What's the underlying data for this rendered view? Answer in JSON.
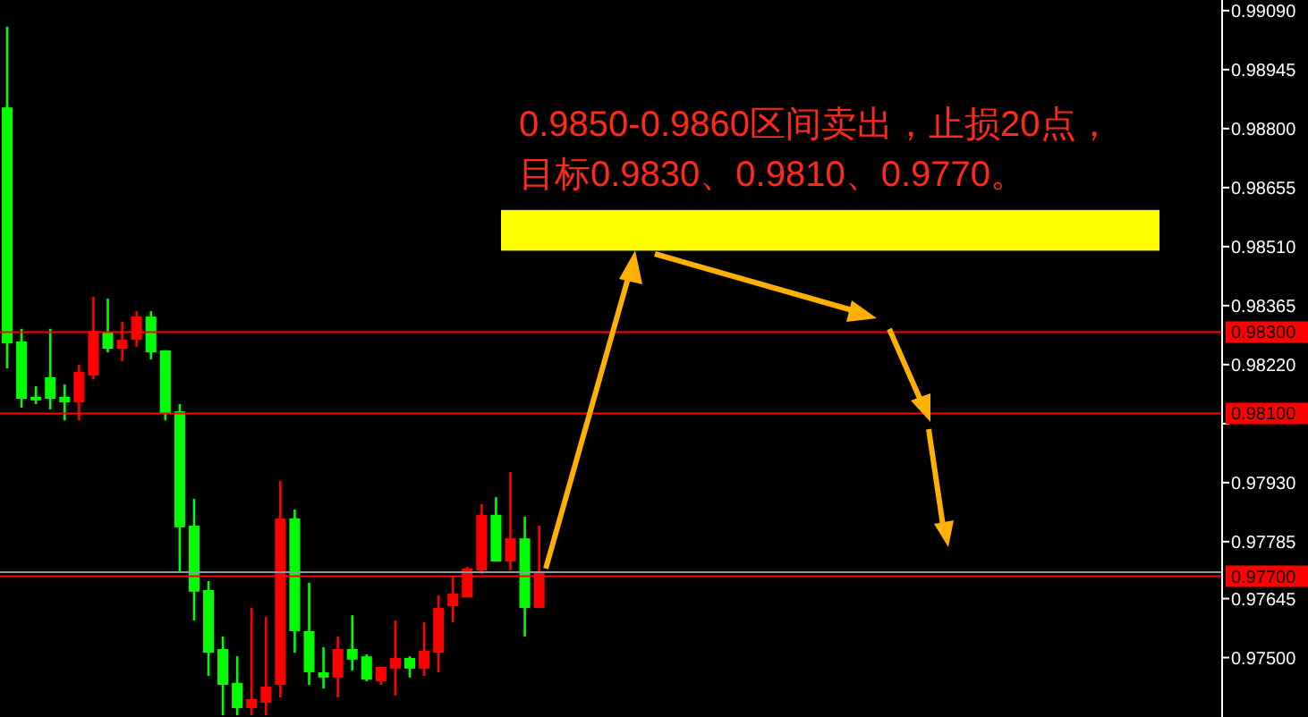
{
  "chart_data": {
    "type": "candlestick",
    "categories": [
      null,
      null,
      null,
      null,
      null,
      null,
      null,
      null,
      null,
      null,
      null,
      null,
      null,
      null,
      null,
      null,
      null,
      null,
      null,
      null,
      null,
      null,
      null,
      null,
      null,
      null,
      null,
      null,
      null,
      null,
      null,
      null,
      null,
      null,
      null,
      null,
      null,
      null,
      null,
      null,
      null,
      null,
      null,
      null,
      null,
      null,
      null,
      null,
      null,
      null,
      null,
      null,
      null,
      null,
      null,
      null,
      null,
      null,
      null,
      null,
      null,
      null,
      null,
      null,
      null,
      null,
      null,
      null,
      null,
      null,
      null,
      null,
      null,
      null,
      null,
      null,
      null,
      null,
      null,
      null,
      null,
      null,
      null,
      null,
      null
    ],
    "ohlc": [
      [
        0.98852,
        0.9905,
        0.98211,
        0.98272
      ],
      [
        0.98277,
        0.98308,
        0.98114,
        0.98136
      ],
      [
        0.98141,
        0.98167,
        0.98123,
        0.98132
      ],
      [
        0.98189,
        0.98308,
        0.9811,
        0.98136
      ],
      [
        0.98141,
        0.98171,
        0.98083,
        0.98127
      ],
      [
        0.98127,
        0.9822,
        0.98083,
        0.98202
      ],
      [
        0.98193,
        0.98387,
        0.98184,
        0.98303
      ],
      [
        0.98299,
        0.98382,
        0.9825,
        0.98259
      ],
      [
        0.98259,
        0.98325,
        0.98228,
        0.98281
      ],
      [
        0.98281,
        0.98351,
        0.98264,
        0.98338
      ],
      [
        0.98338,
        0.98351,
        0.98233,
        0.9825
      ],
      [
        0.98255,
        0.98255,
        0.98083,
        0.98101
      ],
      [
        0.98105,
        0.98123,
        0.9771,
        0.9782
      ],
      [
        0.97824,
        0.9789,
        0.97591,
        0.97662
      ],
      [
        0.97666,
        0.97688,
        0.97455,
        0.97512
      ],
      [
        0.97521,
        0.97552,
        0.97358,
        0.97433
      ],
      [
        0.97438,
        0.97503,
        0.97358,
        0.97376
      ],
      [
        0.97376,
        0.97622,
        0.97358,
        0.97398
      ],
      [
        0.97389,
        0.976,
        0.97358,
        0.97429
      ],
      [
        0.97433,
        0.97934,
        0.97402,
        0.97842
      ],
      [
        0.97842,
        0.97864,
        0.97512,
        0.97565
      ],
      [
        0.97565,
        0.97684,
        0.97433,
        0.97464
      ],
      [
        0.97464,
        0.97525,
        0.97424,
        0.97451
      ],
      [
        0.97451,
        0.97552,
        0.97402,
        0.97521
      ],
      [
        0.97521,
        0.97604,
        0.97468,
        0.97495
      ],
      [
        0.97503,
        0.97508,
        0.97442,
        0.97446
      ],
      [
        0.97442,
        0.97477,
        0.97433,
        0.97477
      ],
      [
        0.97473,
        0.97591,
        0.97407,
        0.97499
      ],
      [
        0.97499,
        0.97503,
        0.97451,
        0.97473
      ],
      [
        0.97473,
        0.97587,
        0.97455,
        0.97517
      ],
      [
        0.97512,
        0.97653,
        0.97464,
        0.97622
      ],
      [
        0.97626,
        0.97701,
        0.97587,
        0.97657
      ],
      [
        0.97648,
        0.97723,
        0.97648,
        0.97719
      ],
      [
        0.97714,
        0.97877,
        0.97706,
        0.97851
      ],
      [
        0.97851,
        0.97894,
        0.97736,
        0.97736
      ],
      [
        0.97736,
        0.97956,
        0.97714,
        0.97793
      ],
      [
        0.97793,
        0.97846,
        0.97552,
        0.97622
      ],
      [
        0.97622,
        0.97824,
        0.97622,
        0.9771
      ],
      null,
      null,
      null,
      null,
      null,
      null,
      null,
      null,
      null,
      null,
      null,
      null,
      null,
      null,
      null,
      null,
      null,
      null,
      null,
      null,
      null,
      null,
      null,
      null,
      null,
      null,
      null,
      null,
      null,
      null,
      null,
      null,
      null,
      null,
      null,
      null,
      null,
      null,
      null,
      null,
      null,
      null,
      null,
      null,
      null,
      null,
      null
    ],
    "colors": [
      "#00ff00",
      "#00ff00",
      "#00ff00",
      "#00ff00",
      "#00ff00",
      "#ff0000",
      "#ff0000",
      "#00ff00",
      "#ff0000",
      "#ff0000",
      "#00ff00",
      "#00ff00",
      "#00ff00",
      "#00ff00",
      "#00ff00",
      "#00ff00",
      "#00ff00",
      "#ff0000",
      "#ff0000",
      "#ff0000",
      "#00ff00",
      "#00ff00",
      "#00ff00",
      "#ff0000",
      "#00ff00",
      "#00ff00",
      "#ff0000",
      "#ff0000",
      "#00ff00",
      "#ff0000",
      "#ff0000",
      "#ff0000",
      "#ff0000",
      "#ff0000",
      "#00ff00",
      "#ff0000",
      "#00ff00",
      "#ff0000",
      null,
      null,
      null,
      null,
      null,
      null,
      null,
      null,
      null,
      null,
      null,
      null,
      null,
      null,
      null,
      null,
      null,
      null,
      null,
      null,
      null,
      null,
      null,
      null,
      null,
      null,
      null,
      null,
      null,
      null,
      null,
      null,
      null,
      null,
      null,
      null,
      null,
      null,
      null,
      null,
      null,
      null,
      null,
      null,
      null,
      null,
      null
    ],
    "ylim": [
      0.97354,
      0.99116
    ],
    "yticks": [
      {
        "value": 0.975,
        "label": "0.97500"
      },
      {
        "value": 0.97645,
        "label": "0.97645"
      },
      {
        "value": 0.97785,
        "label": "0.97785"
      },
      {
        "value": 0.9793,
        "label": "0.97930"
      },
      {
        "value": 0.98075,
        "label": null
      },
      {
        "value": 0.9822,
        "label": "0.98220"
      },
      {
        "value": 0.98365,
        "label": "0.98365"
      },
      {
        "value": 0.9851,
        "label": "0.98510"
      },
      {
        "value": 0.98655,
        "label": "0.98655"
      },
      {
        "value": 0.988,
        "label": "0.98800"
      },
      {
        "value": 0.98945,
        "label": "0.98945"
      },
      {
        "value": 0.9909,
        "label": "0.99090"
      }
    ],
    "ref_lines": [
      {
        "axis": "y",
        "value": 0.983,
        "label": "0.98300",
        "color": "#ff0000"
      },
      {
        "axis": "y",
        "value": 0.981,
        "label": "0.98100",
        "color": "#ff0000"
      },
      {
        "axis": "y",
        "value": 0.9771,
        "label": null,
        "color": "#8c9aa8"
      },
      {
        "axis": "y",
        "value": 0.977,
        "label": "0.97700",
        "color": "#ff0000"
      }
    ],
    "bands": [
      {
        "axis": "y",
        "from": 0.985,
        "to": 0.986,
        "label": null,
        "color": "#ffff00"
      }
    ],
    "annotations": [
      "0.9850-0.9860区间卖出，止损20点，",
      "目标0.9830、0.9810、0.9770。"
    ]
  }
}
